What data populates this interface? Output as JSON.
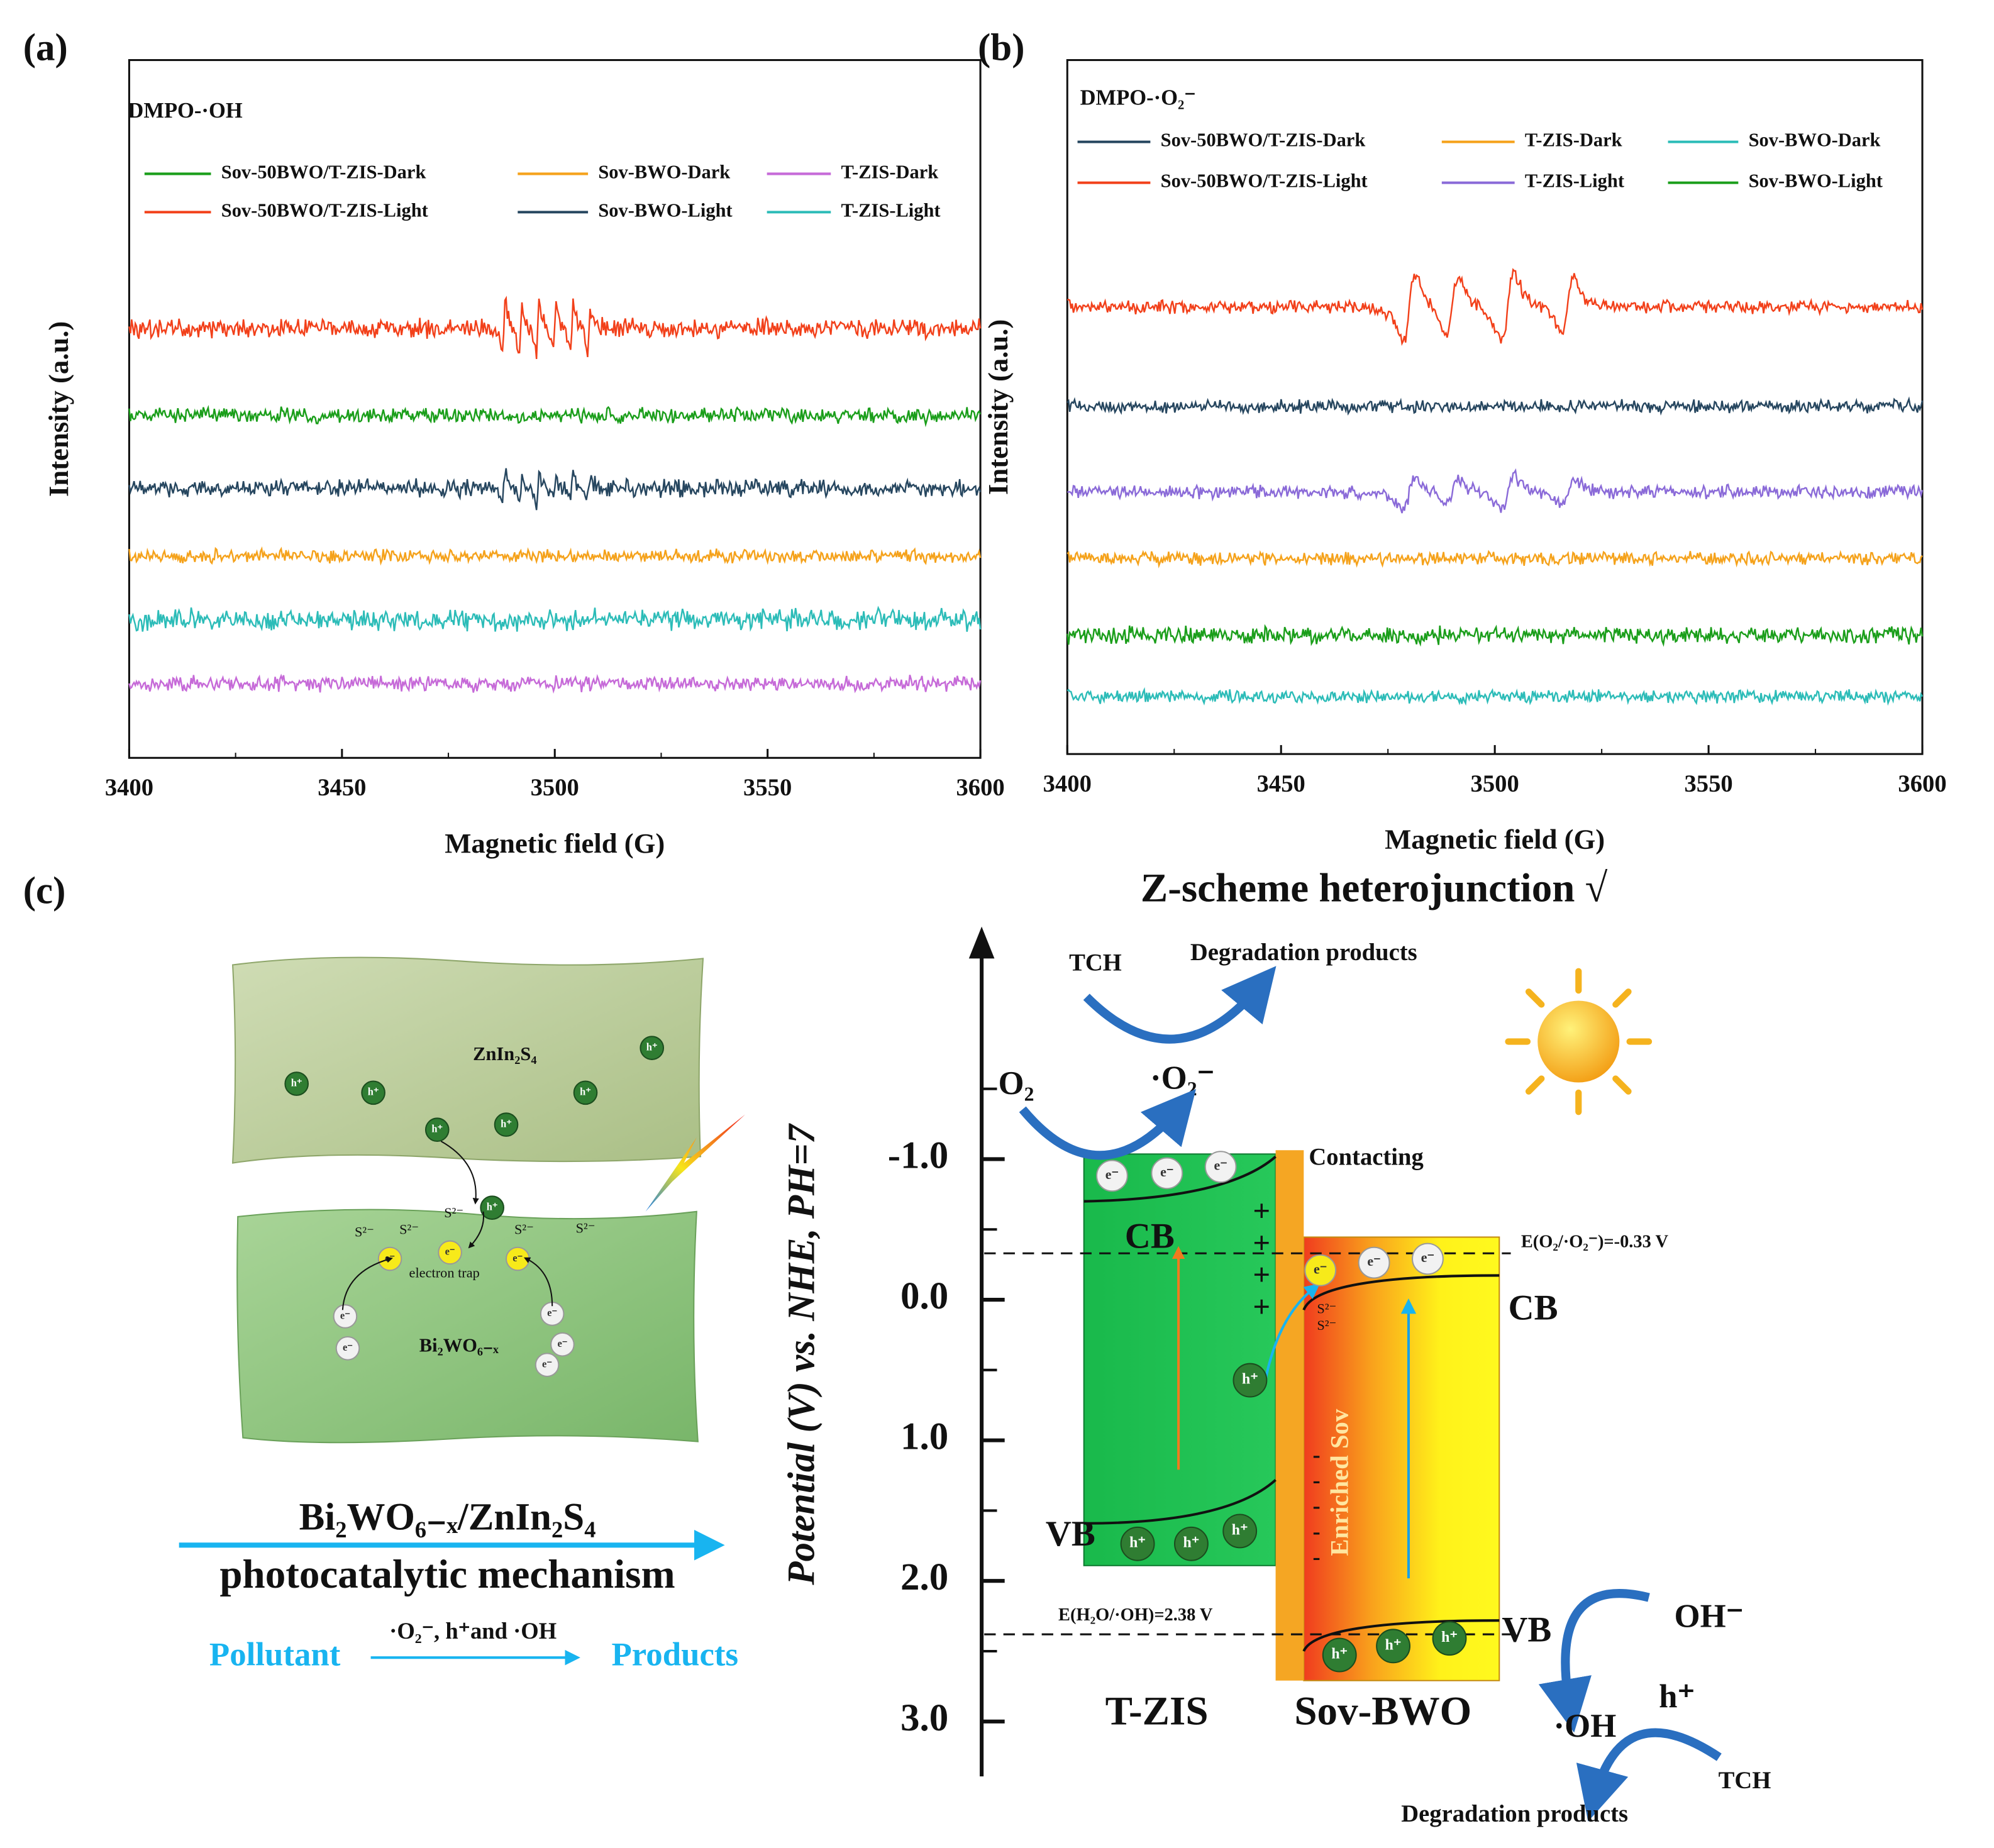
{
  "chart_data": [
    {
      "type": "line",
      "panel_label": "(a)",
      "annotation": "DMPO-·OH",
      "xlabel": "Magnetic field (G)",
      "ylabel": "Intensity (a.u.)",
      "xlim": [
        3400,
        3600
      ],
      "xticks": [
        3400,
        3450,
        3500,
        3550,
        3600
      ],
      "series": [
        {
          "name": "Sov-50BWO/T-ZIS-Dark",
          "color": "#1a9e1a"
        },
        {
          "name": "Sov-BWO-Dark",
          "color": "#f5a21b"
        },
        {
          "name": "T-ZIS-Dark",
          "color": "#c66ad8"
        },
        {
          "name": "Sov-50BWO/T-ZIS-Light",
          "color": "#f2401a"
        },
        {
          "name": "Sov-BWO-Light",
          "color": "#26465f"
        },
        {
          "name": "T-ZIS-Light",
          "color": "#2cbcb8"
        }
      ]
    },
    {
      "type": "line",
      "panel_label": "(b)",
      "annotation": "DMPO-·O₂⁻",
      "xlabel": "Magnetic field (G)",
      "ylabel": "Intensity (a.u.)",
      "xlim": [
        3400,
        3600
      ],
      "xticks": [
        3400,
        3450,
        3500,
        3550,
        3600
      ],
      "series": [
        {
          "name": "Sov-50BWO/T-ZIS-Dark",
          "color": "#26465f"
        },
        {
          "name": "T-ZIS-Dark",
          "color": "#f5a21b"
        },
        {
          "name": "Sov-BWO-Dark",
          "color": "#2cbcb8"
        },
        {
          "name": "Sov-50BWO/T-ZIS-Light",
          "color": "#f2401a"
        },
        {
          "name": "T-ZIS-Light",
          "color": "#8a6ad8"
        },
        {
          "name": "Sov-BWO-Light",
          "color": "#1a9e1a"
        }
      ]
    }
  ],
  "diagram": {
    "panel_label": "(c)",
    "title": "Z-scheme heterojunction √",
    "top_slab": "ZnIn₂S₄",
    "bottom_slab": "Bi₂WO₆₋ₓ",
    "trap": "electron trap",
    "hole": "h⁺",
    "electron": "e⁻",
    "sulfur": "S²⁻",
    "plus": "+",
    "minus": "-",
    "mechanism_title": "Bi₂WO₆₋ₓ/ZnIn₂S₄",
    "mechanism_subtitle": "photocatalytic mechanism",
    "pollutant": "Pollutant",
    "reactive_species": "·O₂⁻, h⁺and ·OH",
    "products": "Products",
    "axis_label": "Potential (V) vs. NHE,  PH=7",
    "ticks": [
      {
        "value": -1,
        "label": "-1.0"
      },
      {
        "value": 0,
        "label": "0.0"
      },
      {
        "value": 1,
        "label": "1.0"
      },
      {
        "value": 2,
        "label": "2.0"
      },
      {
        "value": 3,
        "label": "3.0"
      }
    ],
    "levels": [
      {
        "value": -0.33,
        "label": "E(O₂/·O₂⁻)=-0.33 V"
      },
      {
        "value": 2.38,
        "label": "E(H₂O/·OH)=2.38 V"
      }
    ],
    "tch": "TCH",
    "degradation": "Degradation products",
    "o2": "O₂",
    "superoxide": "·O₂⁻",
    "contacting": "Contacting",
    "cb": "CB",
    "vb": "VB",
    "enriched": "Enriched Sov",
    "left_material": "T-ZIS",
    "right_material": "Sov-BWO",
    "hydroxide": "OH⁻",
    "hydroxyl": "·OH"
  }
}
